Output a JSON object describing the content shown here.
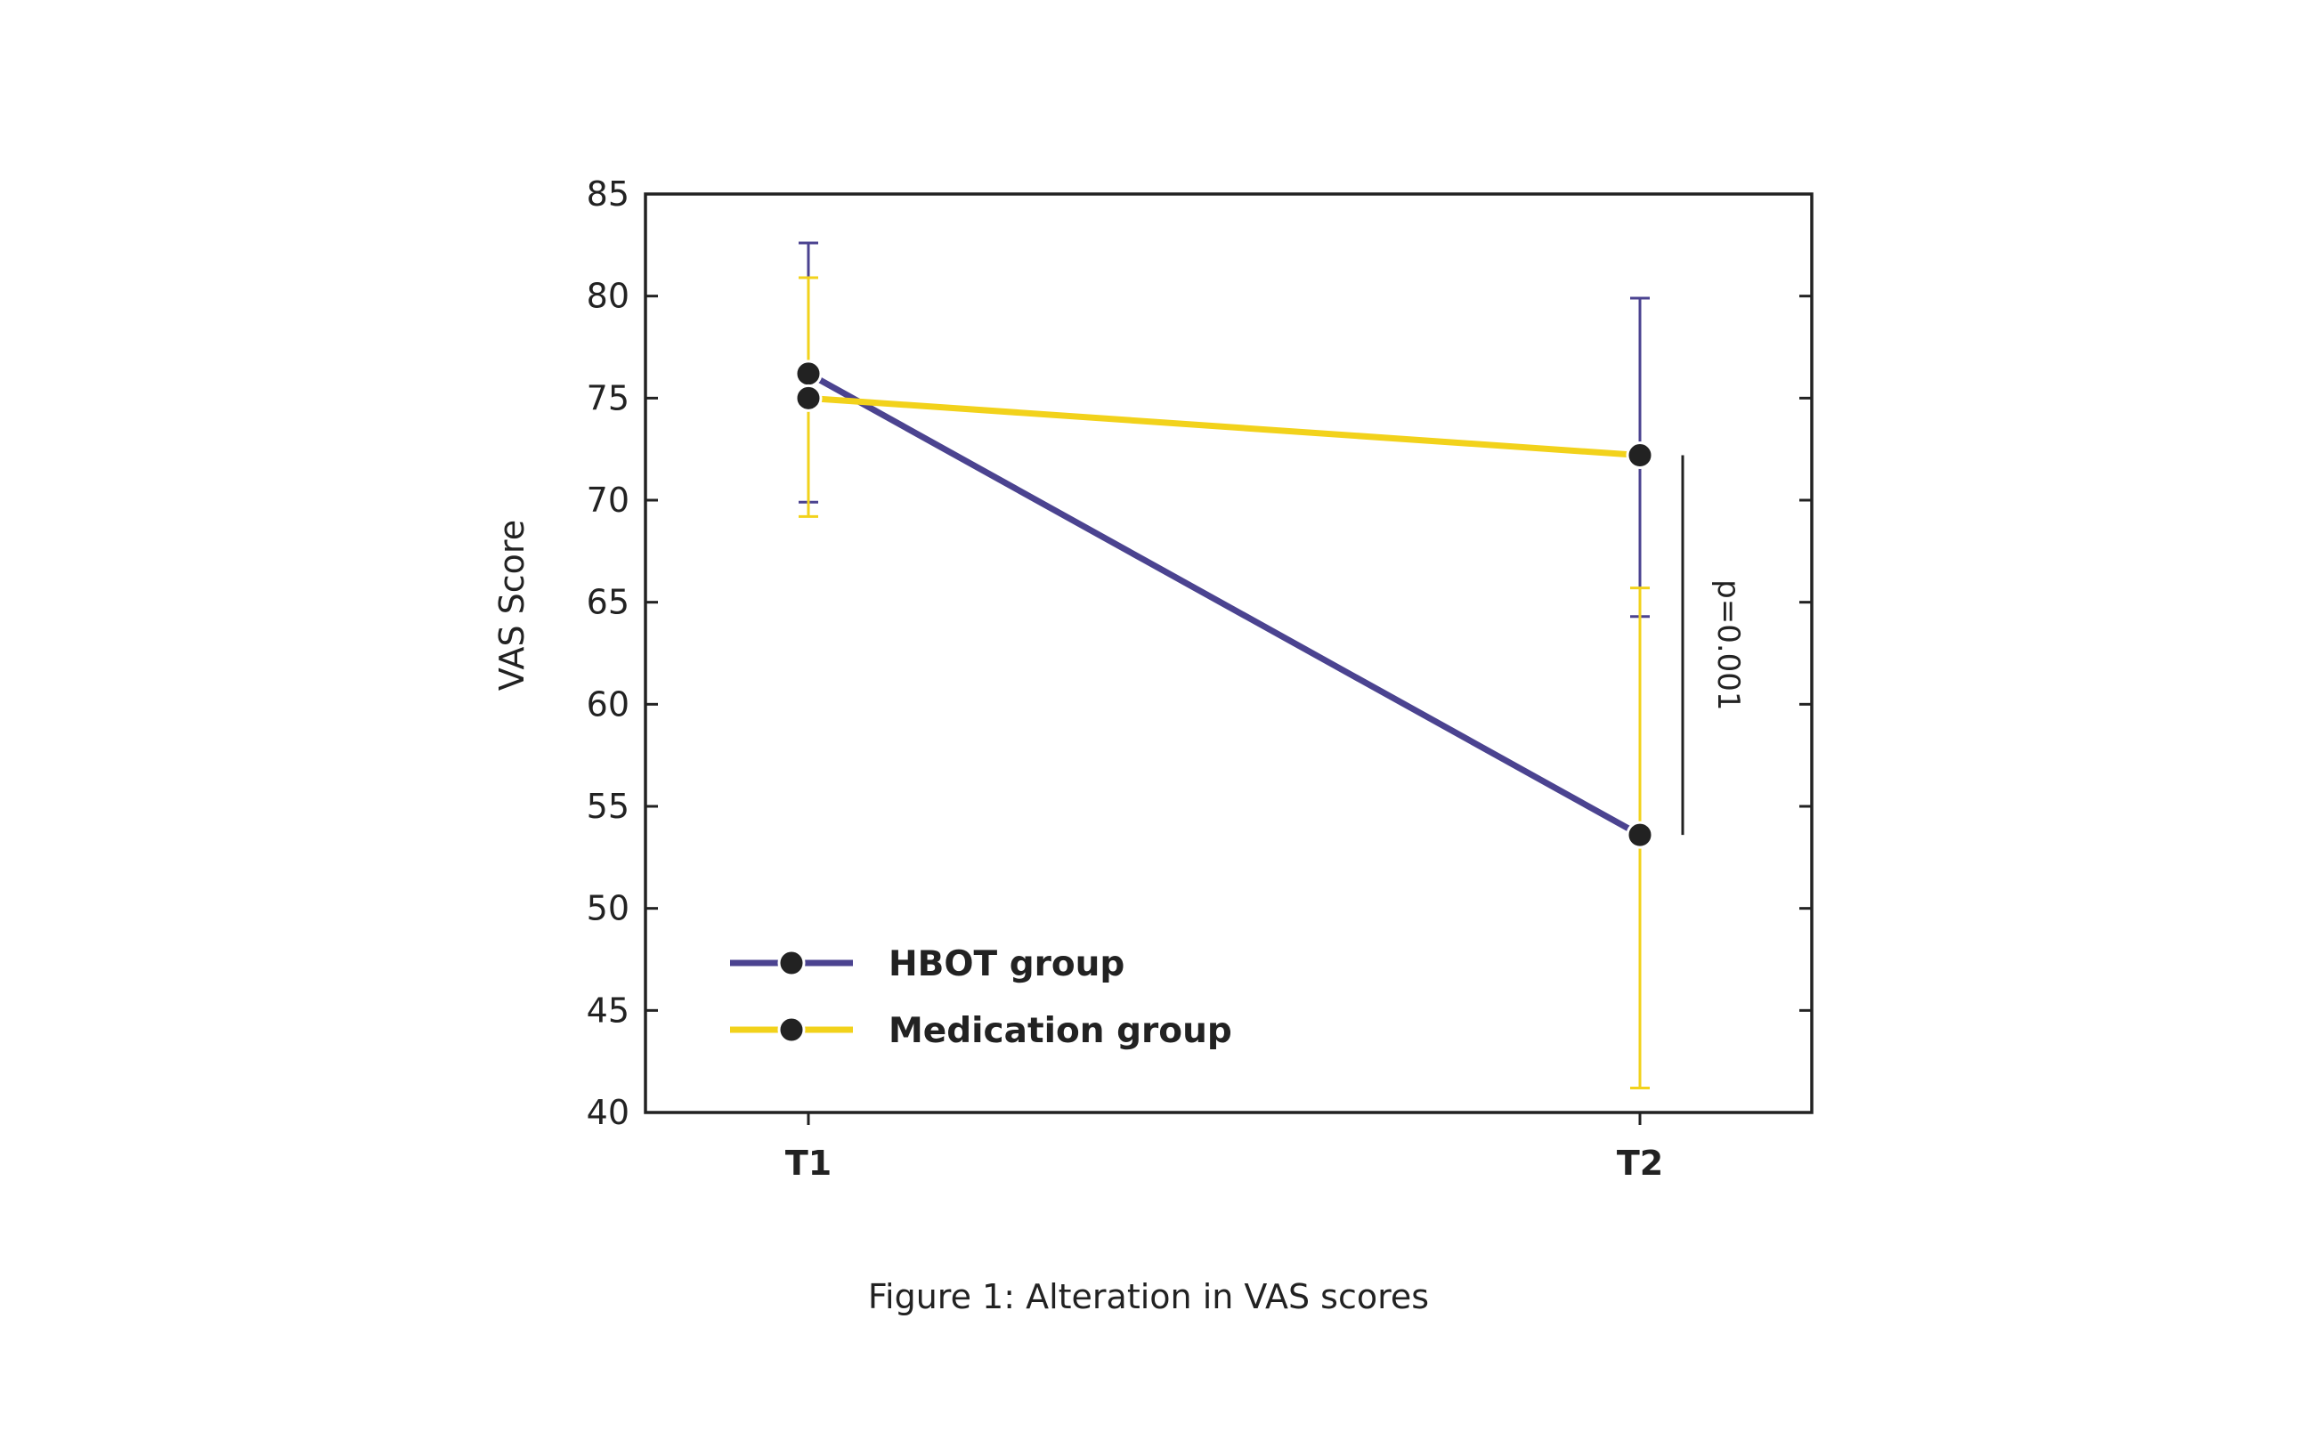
{
  "chart_data": {
    "type": "line",
    "title": "",
    "xlabel": "",
    "ylabel": "VAS Score",
    "categories": [
      "T1",
      "T2"
    ],
    "ylim": [
      40,
      85
    ],
    "yticks": [
      40,
      45,
      50,
      55,
      60,
      65,
      70,
      75,
      80,
      85
    ],
    "series": [
      {
        "name": "HBOT group",
        "color": "#4b4390",
        "values": [
          76.2,
          53.6
        ],
        "error_upper": [
          82.6,
          79.9
        ],
        "error_lower": [
          69.9,
          64.3
        ]
      },
      {
        "name": "Medication group",
        "color": "#f2d21b",
        "values": [
          75.0,
          72.2
        ],
        "error_upper": [
          80.9,
          65.7
        ],
        "error_lower": [
          69.2,
          41.2
        ]
      }
    ],
    "annotation": {
      "text": "p=0.001",
      "between": [
        72.2,
        53.6
      ],
      "category": "T2"
    },
    "marker_color": "#222222",
    "legend_position": "bottom-left"
  },
  "caption": "Figure 1: Alteration in VAS scores"
}
